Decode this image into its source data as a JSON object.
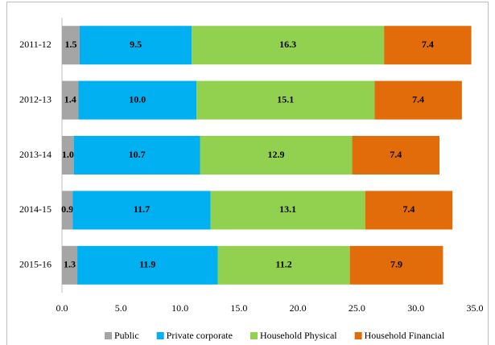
{
  "chart_data": {
    "type": "bar",
    "orientation": "horizontal",
    "stacked": true,
    "legend": "bottom",
    "categories": [
      "2011-12",
      "2012-13",
      "2013-14",
      "2014-15",
      "2015-16"
    ],
    "series": [
      {
        "name": "Public",
        "color": "#a5a5a5",
        "values": [
          1.5,
          1.4,
          1.0,
          0.9,
          1.3
        ],
        "value_labels": [
          "1.5",
          "1.4",
          "1.0",
          "0.9",
          "1.3"
        ]
      },
      {
        "name": "Private corporate",
        "color": "#00b0f0",
        "values": [
          9.5,
          10.0,
          10.7,
          11.7,
          11.9
        ],
        "value_labels": [
          "9.5",
          "10.0",
          "10.7",
          "11.7",
          "11.9"
        ]
      },
      {
        "name": "Household Physical",
        "color": "#92d050",
        "values": [
          16.3,
          15.1,
          12.9,
          13.1,
          11.2
        ],
        "value_labels": [
          "16.3",
          "15.1",
          "12.9",
          "13.1",
          "11.2"
        ]
      },
      {
        "name": "Household Financial",
        "color": "#e36c0a",
        "values": [
          7.4,
          7.4,
          7.4,
          7.4,
          7.9
        ],
        "value_labels": [
          "7.4",
          "7.4",
          "7.4",
          "7.4",
          "7.9"
        ]
      }
    ],
    "xlim": [
      0,
      35
    ],
    "xticks": [
      {
        "value": 0,
        "label": "0.0"
      },
      {
        "value": 5,
        "label": "5.0"
      },
      {
        "value": 10,
        "label": "10.0"
      },
      {
        "value": 15,
        "label": "15.0"
      },
      {
        "value": 20,
        "label": "20.0"
      },
      {
        "value": 25,
        "label": "25.0"
      },
      {
        "value": 30,
        "label": "30.0"
      },
      {
        "value": 35,
        "label": "35.0"
      }
    ]
  }
}
